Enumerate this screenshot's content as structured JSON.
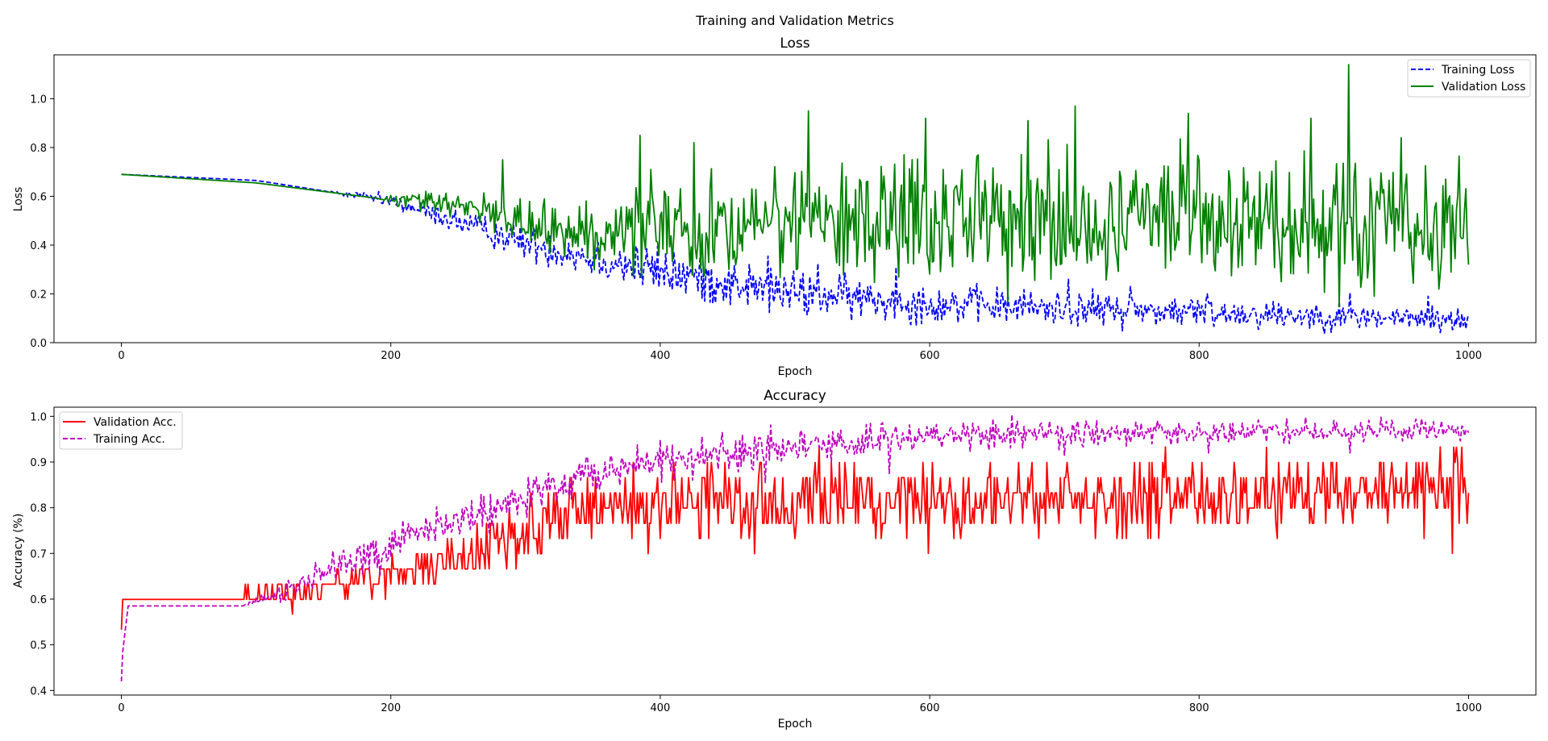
{
  "figure": {
    "title": "Training and Validation Metrics"
  },
  "chart_data": [
    {
      "type": "line",
      "title": "Loss",
      "xlabel": "Epoch",
      "ylabel": "Loss",
      "xlim": [
        -50,
        1050
      ],
      "ylim": [
        0.0,
        1.18
      ],
      "xticks": [
        "0",
        "200",
        "400",
        "600",
        "800",
        "1000"
      ],
      "yticks": [
        "0.0",
        "0.2",
        "0.4",
        "0.6",
        "0.8",
        "1.0"
      ],
      "legend_position": "upper right",
      "grid": false,
      "series": [
        {
          "name": "Training Loss",
          "color": "#0000ff",
          "dash": "dashed",
          "trend_points": [
            [
              0,
              0.69
            ],
            [
              100,
              0.665
            ],
            [
              200,
              0.58
            ],
            [
              300,
              0.41
            ],
            [
              400,
              0.29
            ],
            [
              500,
              0.2
            ],
            [
              600,
              0.16
            ],
            [
              700,
              0.14
            ],
            [
              800,
              0.125
            ],
            [
              900,
              0.11
            ],
            [
              1000,
              0.09
            ]
          ],
          "noise_points": [
            [
              0,
              0.0
            ],
            [
              150,
              0.0
            ],
            [
              200,
              0.015
            ],
            [
              300,
              0.035
            ],
            [
              400,
              0.05
            ],
            [
              500,
              0.045
            ],
            [
              700,
              0.035
            ],
            [
              1000,
              0.025
            ]
          ],
          "peaks": [
            [
              383,
              0.38
            ],
            [
              480,
              0.355
            ],
            [
              517,
              0.325
            ],
            [
              575,
              0.31
            ],
            [
              703,
              0.26
            ],
            [
              749,
              0.23
            ],
            [
              806,
              0.2
            ],
            [
              912,
              0.205
            ],
            [
              970,
              0.19
            ]
          ]
        },
        {
          "name": "Validation Loss",
          "color": "#008000",
          "dash": "solid",
          "trend_points": [
            [
              0,
              0.69
            ],
            [
              100,
              0.655
            ],
            [
              200,
              0.585
            ],
            [
              250,
              0.57
            ],
            [
              300,
              0.49
            ],
            [
              340,
              0.45
            ],
            [
              400,
              0.46
            ],
            [
              500,
              0.49
            ],
            [
              600,
              0.5
            ],
            [
              700,
              0.52
            ],
            [
              800,
              0.5
            ],
            [
              900,
              0.47
            ],
            [
              1000,
              0.47
            ]
          ],
          "noise_points": [
            [
              0,
              0.0
            ],
            [
              190,
              0.0
            ],
            [
              200,
              0.012
            ],
            [
              260,
              0.03
            ],
            [
              300,
              0.05
            ],
            [
              340,
              0.06
            ],
            [
              400,
              0.1
            ],
            [
              600,
              0.13
            ],
            [
              1000,
              0.14
            ]
          ],
          "peaks": [
            [
              283,
              0.75
            ],
            [
              385,
              0.85
            ],
            [
              425,
              0.82
            ],
            [
              510,
              0.95
            ],
            [
              597,
              0.92
            ],
            [
              673,
              0.91
            ],
            [
              708,
              0.97
            ],
            [
              792,
              0.94
            ],
            [
              883,
              0.92
            ],
            [
              911,
              1.14
            ],
            [
              950,
              0.84
            ],
            [
              1000,
              0.32
            ]
          ],
          "troughs": [
            [
              690,
              0.26
            ],
            [
              861,
              0.25
            ],
            [
              930,
              0.19
            ],
            [
              978,
              0.22
            ]
          ]
        }
      ]
    },
    {
      "type": "line",
      "title": "Accuracy",
      "xlabel": "Epoch",
      "ylabel": "Accuracy (%)",
      "xlim": [
        -50,
        1050
      ],
      "ylim": [
        0.39,
        1.02
      ],
      "xticks": [
        "0",
        "200",
        "400",
        "600",
        "800",
        "1000"
      ],
      "yticks": [
        "0.4",
        "0.5",
        "0.6",
        "0.7",
        "0.8",
        "0.9",
        "1.0"
      ],
      "legend_position": "upper left",
      "grid": false,
      "series": [
        {
          "name": "Validation Acc.",
          "color": "#ff0000",
          "dash": "solid",
          "quantization": 0.0333,
          "initial": 0.533,
          "trend_points": [
            [
              0,
              0.6
            ],
            [
              84,
              0.6
            ],
            [
              100,
              0.615
            ],
            [
              140,
              0.62
            ],
            [
              200,
              0.655
            ],
            [
              250,
              0.69
            ],
            [
              300,
              0.75
            ],
            [
              350,
              0.8
            ],
            [
              400,
              0.815
            ],
            [
              500,
              0.815
            ],
            [
              700,
              0.82
            ],
            [
              800,
              0.82
            ],
            [
              1000,
              0.84
            ]
          ],
          "noise_points": [
            [
              0,
              0.0
            ],
            [
              84,
              0.0
            ],
            [
              90,
              0.01
            ],
            [
              150,
              0.015
            ],
            [
              200,
              0.02
            ],
            [
              300,
              0.035
            ],
            [
              350,
              0.04
            ],
            [
              1000,
              0.04
            ]
          ],
          "peaks": [
            [
              775,
              0.933
            ],
            [
              979,
              0.933
            ]
          ],
          "troughs": [
            [
              127,
              0.567
            ],
            [
              599,
              0.7
            ],
            [
              988,
              0.7
            ]
          ]
        },
        {
          "name": "Training Acc.",
          "color": "#bf00bf",
          "dash": "dashed",
          "initial": 0.42,
          "trend_points": [
            [
              0,
              0.46
            ],
            [
              5,
              0.585
            ],
            [
              90,
              0.585
            ],
            [
              120,
              0.61
            ],
            [
              150,
              0.66
            ],
            [
              200,
              0.72
            ],
            [
              250,
              0.77
            ],
            [
              300,
              0.83
            ],
            [
              350,
              0.87
            ],
            [
              400,
              0.9
            ],
            [
              500,
              0.935
            ],
            [
              600,
              0.955
            ],
            [
              700,
              0.965
            ],
            [
              800,
              0.965
            ],
            [
              900,
              0.97
            ],
            [
              1000,
              0.97
            ]
          ],
          "noise_points": [
            [
              0,
              0.0
            ],
            [
              90,
              0.0
            ],
            [
              110,
              0.01
            ],
            [
              200,
              0.025
            ],
            [
              400,
              0.02
            ],
            [
              700,
              0.015
            ],
            [
              1000,
              0.01
            ]
          ],
          "troughs": [
            [
              478,
              0.855
            ],
            [
              570,
              0.875
            ],
            [
              700,
              0.915
            ],
            [
              807,
              0.92
            ],
            [
              912,
              0.92
            ]
          ],
          "peaks": [
            [
              632,
              0.985
            ],
            [
              980,
              0.99
            ]
          ]
        }
      ]
    }
  ]
}
